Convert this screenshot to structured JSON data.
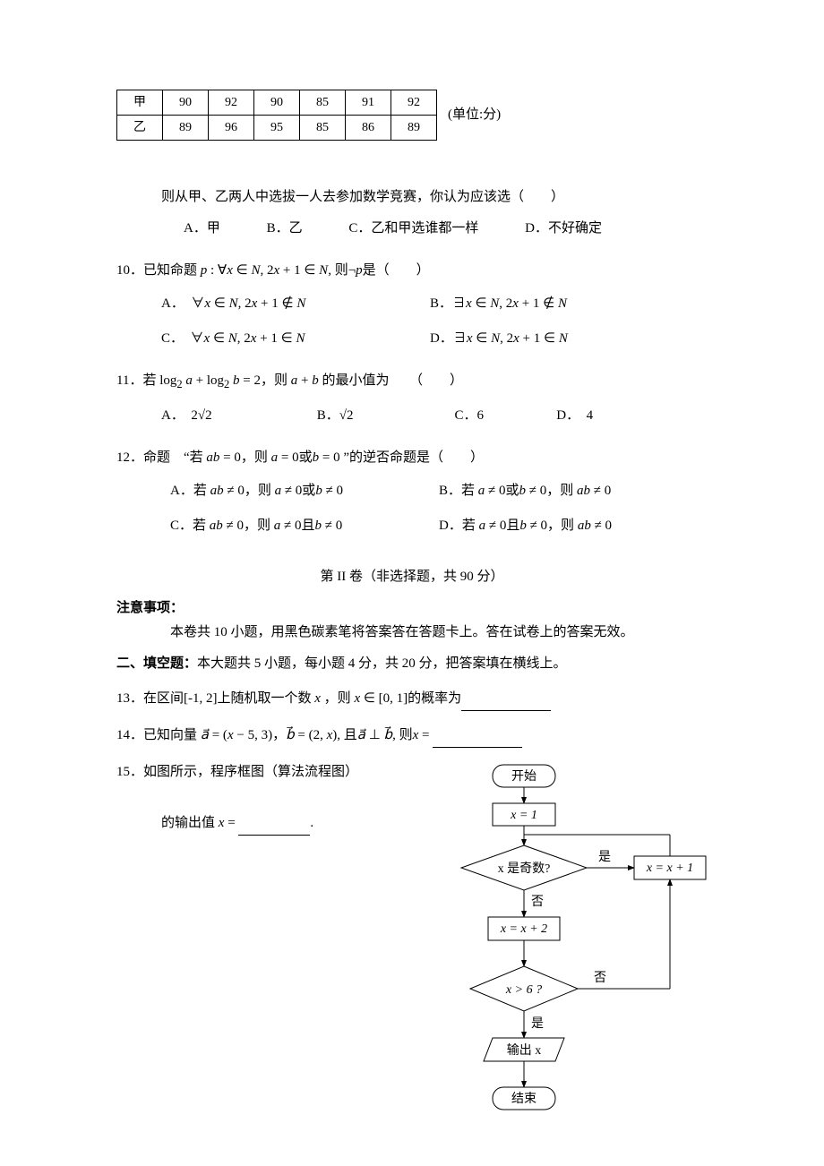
{
  "table": {
    "unit": "(单位:分)",
    "rows": [
      [
        "甲",
        "90",
        "92",
        "90",
        "85",
        "91",
        "92"
      ],
      [
        "乙",
        "89",
        "96",
        "95",
        "85",
        "86",
        "89"
      ]
    ]
  },
  "q9": {
    "prompt": "则从甲、乙两人中选拔一人去参加数学竞赛，你认为应该选（　　）",
    "opts": {
      "A": "A．甲",
      "B": "B．乙",
      "C": "C．乙和甲选谁都一样",
      "D": "D．不好确定"
    }
  },
  "q10": {
    "stem": "10．已知命题 <i>p</i> : ∀<i>x</i> ∈ <i>N</i>, 2<i>x</i> + 1 ∈ <i>N</i>, 则¬<i>p</i>是（　　）",
    "A": "A．　∀<i>x</i> ∈ <i>N</i>, 2<i>x</i> + 1 ∉ <i>N</i>",
    "B": "B．∃<i>x</i> ∈ <i>N</i>, 2<i>x</i> + 1 ∉ <i>N</i>",
    "C": "C．　∀<i>x</i> ∈ <i>N</i>, 2<i>x</i> + 1 ∈ <i>N</i>",
    "D": "D．∃<i>x</i> ∈ <i>N</i>, 2<i>x</i> + 1 ∈ <i>N</i>"
  },
  "q11": {
    "stem": "11．若 log<sub>2</sub> <i>a</i> + log<sub>2</sub> <i>b</i> = 2，则 <i>a</i> + <i>b</i> 的最小值为　　（　　）",
    "A": "A．　2√2",
    "B": "B．√2",
    "C": "C．6",
    "D": "D．　4"
  },
  "q12": {
    "stem": "12．命题　“若 <i>ab</i> = 0，则 <i>a</i> = 0或<i>b</i> = 0 ”的逆否命题是（　　）",
    "A": "A．若 <i>ab</i> ≠ 0，则 <i>a</i> ≠ 0或<i>b</i> ≠ 0",
    "B": "B．若 <i>a</i> ≠ 0或<i>b</i> ≠ 0，则 <i>ab</i> ≠ 0",
    "C": "C．若 <i>ab</i> ≠ 0，则 <i>a</i> ≠ 0且<i>b</i> ≠ 0",
    "D": "D．若 <i>a</i> ≠ 0且<i>b</i> ≠ 0，则 <i>ab</i> ≠ 0"
  },
  "section2": {
    "title": "第 II 卷（非选择题，共 90 分）",
    "note_label": "注意事项：",
    "note_text": "本卷共 10 小题，用黑色碳素笔将答案答在答题卡上。答在试卷上的答案无效。",
    "fill_label": "二、填空题：",
    "fill_desc": "本大题共 5 小题，每小题 4 分，共 20 分，把答案填在横线上。"
  },
  "q13": "13．在区间[-1, 2]上随机取一个数 <i>x</i> ，则 <i>x</i> ∈ [0, 1]的概率为",
  "q14": "14．已知向量 <i>a⃗</i> = (<i>x</i> − 5,  3)，<i>b⃗</i> = (2,  <i>x</i>), 且<i>a⃗</i> ⊥ <i>b⃗</i>, 则<i>x</i> =",
  "q15": {
    "line1": "15．如图所示，程序框图（算法流程图）",
    "line2": "的输出值 <i>x</i> ="
  },
  "flowchart": {
    "start": "开始",
    "init": "x = 1",
    "cond1": "x 是奇数?",
    "yes": "是",
    "no": "否",
    "assign1": "x = x + 1",
    "assign2": "x = x + 2",
    "cond2": "x > 6 ?",
    "output": "输出 x",
    "end": "结束",
    "colors": {
      "stroke": "#000000",
      "fill": "#ffffff",
      "text": "#000000"
    },
    "fontsize": 14
  }
}
